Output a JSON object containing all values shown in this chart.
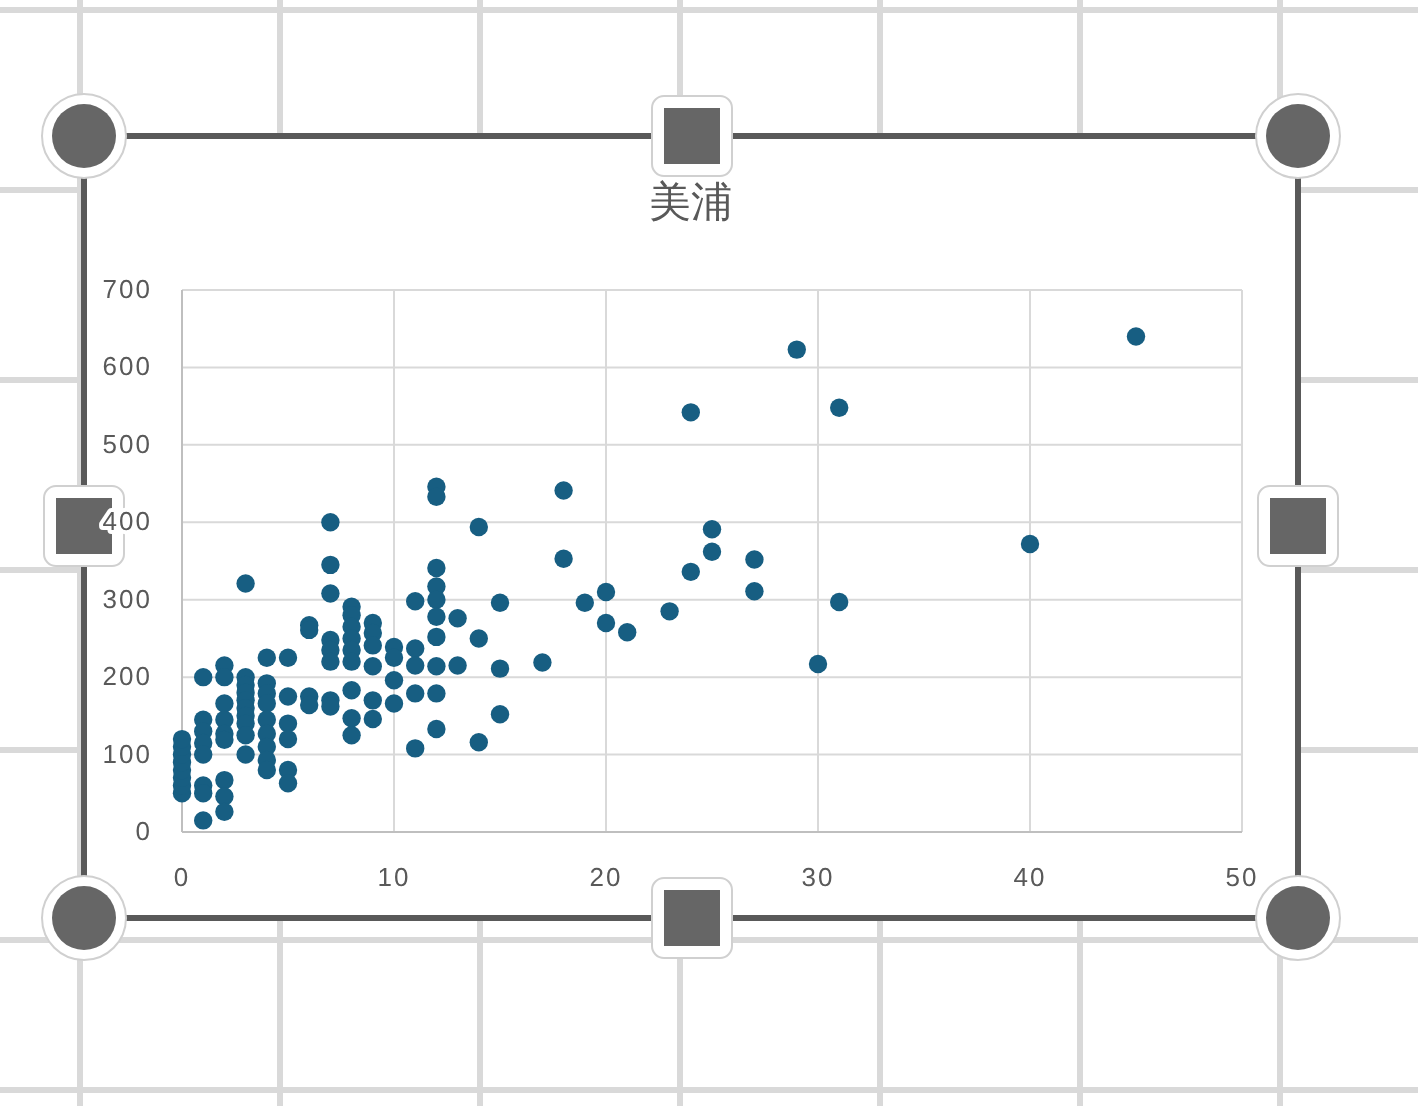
{
  "chart_data": {
    "type": "scatter",
    "title": "美浦",
    "color": "#175e82",
    "marker": "circle",
    "grid": true,
    "x": [
      0,
      0,
      0,
      0,
      0,
      0,
      0,
      0,
      1,
      1,
      1,
      1,
      1,
      1,
      1,
      1,
      2,
      2,
      2,
      2,
      2,
      2,
      2,
      2,
      2,
      3,
      3,
      3,
      3,
      3,
      3,
      3,
      3,
      3,
      3,
      4,
      4,
      4,
      4,
      4,
      4,
      4,
      4,
      4,
      5,
      5,
      5,
      5,
      5,
      5,
      6,
      6,
      6,
      6,
      7,
      7,
      7,
      7,
      7,
      7,
      7,
      7,
      8,
      8,
      8,
      8,
      8,
      8,
      8,
      8,
      8,
      9,
      9,
      9,
      9,
      9,
      9,
      10,
      10,
      10,
      10,
      11,
      11,
      11,
      11,
      11,
      12,
      12,
      12,
      12,
      12,
      12,
      12,
      12,
      12,
      12,
      13,
      13,
      14,
      14,
      14,
      15,
      15,
      15,
      17,
      18,
      18,
      19,
      20,
      20,
      21,
      23,
      24,
      24,
      25,
      25,
      27,
      27,
      29,
      30,
      31,
      31,
      40,
      45
    ],
    "values": [
      50,
      60,
      70,
      80,
      90,
      100,
      110,
      120,
      200,
      145,
      130,
      115,
      100,
      60,
      50,
      15,
      215,
      200,
      166,
      145,
      127,
      119,
      67,
      46,
      26,
      321,
      200,
      190,
      180,
      170,
      160,
      150,
      140,
      125,
      100,
      225,
      192,
      179,
      166,
      145,
      127,
      110,
      93,
      80,
      225,
      175,
      140,
      120,
      80,
      63,
      267,
      261,
      175,
      164,
      400,
      345,
      308,
      248,
      235,
      220,
      170,
      162,
      291,
      280,
      265,
      250,
      235,
      220,
      183,
      147,
      125,
      270,
      257,
      241,
      214,
      170,
      146,
      239,
      225,
      196,
      166,
      298,
      237,
      215,
      179,
      108,
      446,
      433,
      341,
      317,
      300,
      278,
      252,
      214,
      179,
      133,
      276,
      215,
      394,
      250,
      116,
      296,
      211,
      152,
      219,
      441,
      353,
      296,
      310,
      270,
      258,
      285,
      542,
      336,
      391,
      362,
      352,
      311,
      623,
      217,
      548,
      297,
      372,
      640
    ],
    "xlim": [
      0,
      50
    ],
    "xticks": [
      0,
      10,
      20,
      30,
      40,
      50
    ],
    "ylim": [
      0,
      700
    ],
    "yticks": [
      0,
      100,
      200,
      300,
      400,
      500,
      600,
      700
    ]
  }
}
